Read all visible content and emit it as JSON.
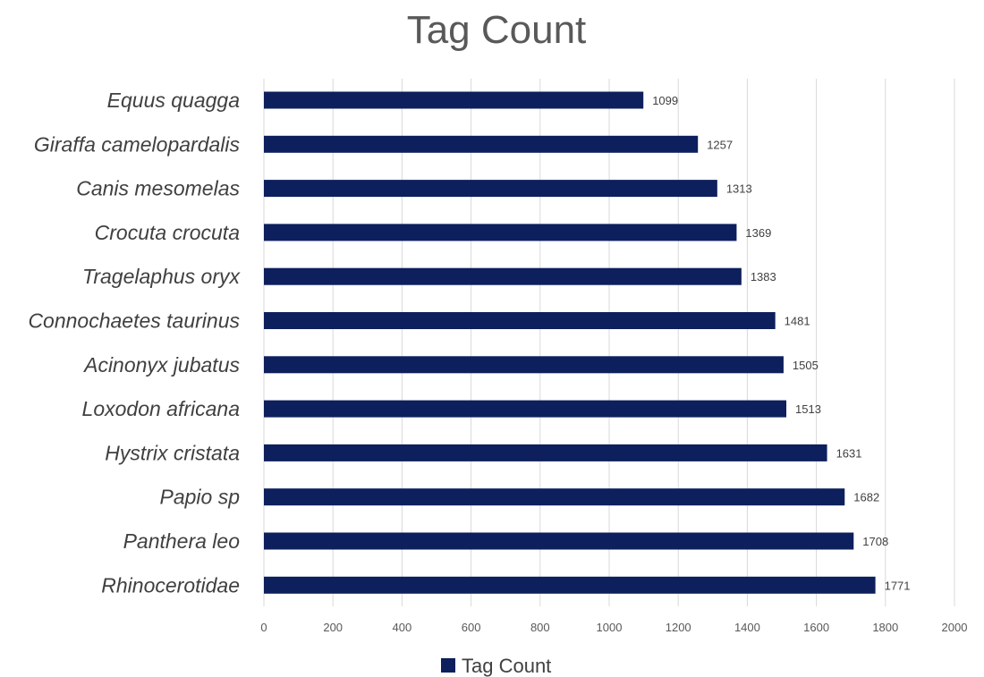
{
  "chart_data": {
    "type": "bar",
    "orientation": "horizontal",
    "title": "Tag Count",
    "categories": [
      "Equus quagga",
      "Giraffa camelopardalis",
      "Canis mesomelas",
      "Crocuta crocuta",
      "Tragelaphus oryx",
      "Connochaetes taurinus",
      "Acinonyx jubatus",
      "Loxodon africana",
      "Hystrix cristata",
      "Papio sp",
      "Panthera leo",
      "Rhinocerotidae"
    ],
    "series": [
      {
        "name": "Tag Count",
        "values": [
          1099,
          1257,
          1313,
          1369,
          1383,
          1481,
          1505,
          1513,
          1631,
          1682,
          1708,
          1771
        ],
        "color": "#0d1f5c"
      }
    ],
    "xlim": [
      0,
      2000
    ],
    "xticks": [
      "0",
      "200",
      "400",
      "600",
      "800",
      "1000",
      "1200",
      "1400",
      "1600",
      "1800",
      "2000"
    ],
    "grid": true,
    "legend": "bottom",
    "data_labels": true
  }
}
